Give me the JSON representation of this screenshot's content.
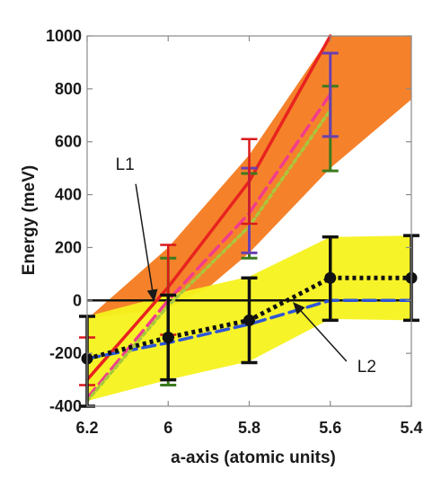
{
  "chart_data": {
    "type": "line",
    "xlabel": "a-axis (atomic units)",
    "ylabel": "Energy (meV)",
    "xlim": [
      6.2,
      5.4
    ],
    "ylim": [
      -400,
      1000
    ],
    "x_ticks": [
      "6.2",
      "6",
      "5.8",
      "5.6",
      "5.4"
    ],
    "y_ticks": [
      "1000",
      "800",
      "600",
      "400",
      "200",
      "0",
      "-200",
      "-400"
    ],
    "colors": {
      "orange_band": "#f47b20",
      "yellow_band": "#f5f21e",
      "red_line": "#e8231f",
      "pink_line": "#f23c8c",
      "green_line": "#a8c83c",
      "blue_line": "#2e55d6",
      "black_line": "#111111",
      "green_error": "#3d7a1e",
      "purple_error": "#6a3fb0",
      "red_error": "#d91a1a",
      "frame": "#8a8a8a"
    },
    "bands": [
      {
        "color_key": "orange_band",
        "upper": [
          [
            6.2,
            -70
          ],
          [
            6.0,
            200
          ],
          [
            5.8,
            550
          ],
          [
            5.6,
            1000
          ],
          [
            5.4,
            1000
          ]
        ],
        "lower": [
          [
            6.2,
            -70
          ],
          [
            6.0,
            -30
          ],
          [
            5.9,
            50
          ],
          [
            5.8,
            180
          ],
          [
            5.6,
            500
          ],
          [
            5.4,
            760
          ]
        ]
      },
      {
        "color_key": "yellow_band",
        "upper": [
          [
            6.2,
            -60
          ],
          [
            6.0,
            20
          ],
          [
            5.8,
            90
          ],
          [
            5.6,
            240
          ],
          [
            5.4,
            245
          ]
        ],
        "lower": [
          [
            6.2,
            -380
          ],
          [
            6.0,
            -300
          ],
          [
            5.8,
            -230
          ],
          [
            5.6,
            -70
          ],
          [
            5.4,
            -75
          ]
        ]
      }
    ],
    "series": [
      {
        "color_key": "red_line",
        "style": "solid",
        "x": [
          6.2,
          6.0,
          5.8,
          5.6
        ],
        "y": [
          -300,
          50,
          450,
          1000
        ],
        "errors": [
          [
            6.2,
            -320,
            -140
          ],
          [
            6.0,
            -130,
            210
          ],
          [
            5.8,
            290,
            610
          ]
        ],
        "error_color_key": "red_error"
      },
      {
        "color_key": "blue_line",
        "style": "dash",
        "x": [
          6.2,
          6.0,
          5.8,
          5.6,
          5.4
        ],
        "y": [
          -220,
          -160,
          -90,
          0,
          0
        ]
      },
      {
        "color_key": "pink_line",
        "style": "dash",
        "x": [
          6.2,
          6.0,
          5.8,
          5.6
        ],
        "y": [
          -370,
          0,
          330,
          780
        ]
      },
      {
        "color_key": "green_line",
        "style": "dot",
        "x": [
          6.2,
          6.0,
          5.8,
          5.6
        ],
        "y": [
          -380,
          -20,
          280,
          720
        ]
      },
      {
        "color_key": "black_line",
        "style": "dot",
        "marker": "circle",
        "x": [
          6.2,
          6.0,
          5.8,
          5.6,
          5.4
        ],
        "y": [
          -220,
          -140,
          -75,
          85,
          85
        ],
        "errors": [
          [
            6.2,
            -400,
            -60
          ],
          [
            6.0,
            -300,
            20
          ],
          [
            5.8,
            -235,
            85
          ],
          [
            5.6,
            -75,
            240
          ],
          [
            5.4,
            -75,
            245
          ]
        ],
        "error_color_key": "black_line"
      }
    ],
    "extra_errors": [
      {
        "x": 6.0,
        "lo": -320,
        "hi": 160,
        "color_key": "green_error"
      },
      {
        "x": 5.8,
        "lo": 160,
        "hi": 480,
        "color_key": "green_error"
      },
      {
        "x": 5.8,
        "lo": 180,
        "hi": 500,
        "color_key": "purple_error"
      },
      {
        "x": 5.6,
        "lo": 490,
        "hi": 810,
        "color_key": "green_error"
      },
      {
        "x": 5.6,
        "lo": 620,
        "hi": 935,
        "color_key": "purple_error"
      }
    ],
    "annotations": [
      {
        "text": "L1",
        "from": [
          6.08,
          440
        ],
        "to": [
          6.035,
          0
        ]
      },
      {
        "text": "L2",
        "from": [
          5.56,
          -230
        ],
        "to": [
          5.69,
          -10
        ]
      }
    ]
  }
}
